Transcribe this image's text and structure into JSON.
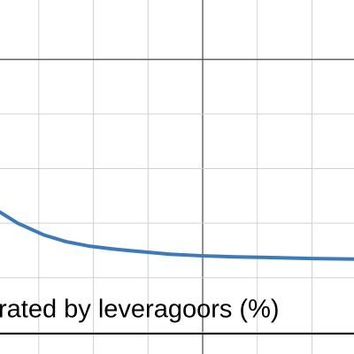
{
  "chart_data": {
    "type": "line",
    "annotation": "rated by leveragoors (%)",
    "x": [
      -3.71,
      -3.39,
      -2.9,
      -2.5,
      -2.09,
      -1.6,
      -1.28,
      -0.6,
      0,
      0.6,
      1.15,
      2.0,
      2.77
    ],
    "series": [
      {
        "color": "#3f7ab8",
        "values": [
          -2.8,
          -3.0,
          -3.22,
          -3.34,
          -3.42,
          -3.48,
          -3.51,
          -3.57,
          -3.6,
          -3.62,
          -3.63,
          -3.65,
          -3.66
        ]
      }
    ],
    "xlim": [
      -3.71,
      2.77
    ],
    "ylim": [
      -5.4,
      1.09
    ],
    "xgrid": [
      -3,
      -2,
      -1,
      0,
      1,
      2
    ],
    "ygrid": [
      0,
      -1,
      -2,
      -3,
      -4,
      -5
    ],
    "grid": true
  }
}
